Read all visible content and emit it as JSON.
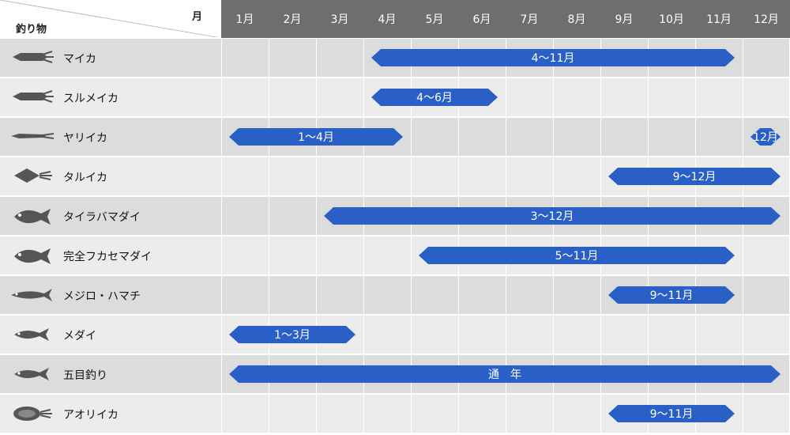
{
  "header": {
    "corner_left": "釣り物",
    "corner_right": "月"
  },
  "colors": {
    "header_bg": "#6e6e6e",
    "row_dark": "#dcdcdc",
    "row_light": "#ececec",
    "bar": "#2a5fc6"
  },
  "chart_data": {
    "type": "gantt",
    "months": [
      "1月",
      "2月",
      "3月",
      "4月",
      "5月",
      "6月",
      "7月",
      "8月",
      "9月",
      "10月",
      "11月",
      "12月"
    ],
    "rows": [
      {
        "label": "マイカ",
        "icon": "squid-icon",
        "bars": [
          {
            "start": 4,
            "end": 11,
            "text": "4～11月"
          }
        ]
      },
      {
        "label": "スルメイカ",
        "icon": "squid-icon",
        "bars": [
          {
            "start": 4,
            "end": 6,
            "text": "4～6月"
          }
        ]
      },
      {
        "label": "ヤリイカ",
        "icon": "spear-squid-icon",
        "bars": [
          {
            "start": 1,
            "end": 4,
            "text": "1～4月"
          },
          {
            "start": 12,
            "end": 12,
            "text": "12月"
          }
        ]
      },
      {
        "label": "タルイカ",
        "icon": "diamond-squid-icon",
        "bars": [
          {
            "start": 9,
            "end": 12,
            "text": "9～12月"
          }
        ]
      },
      {
        "label": "タイラバマダイ",
        "icon": "sea-bream-icon",
        "bars": [
          {
            "start": 3,
            "end": 12,
            "text": "3～12月"
          }
        ]
      },
      {
        "label": "完全フカセマダイ",
        "icon": "sea-bream-icon",
        "bars": [
          {
            "start": 5,
            "end": 11,
            "text": "5～11月"
          }
        ]
      },
      {
        "label": "メジロ・ハマチ",
        "icon": "yellowtail-icon",
        "bars": [
          {
            "start": 9,
            "end": 11,
            "text": "9～11月"
          }
        ]
      },
      {
        "label": "メダイ",
        "icon": "fish-icon",
        "bars": [
          {
            "start": 1,
            "end": 3,
            "text": "1～3月"
          }
        ]
      },
      {
        "label": "五目釣り",
        "icon": "fish-icon",
        "bars": [
          {
            "start": 1,
            "end": 12,
            "text": "通　年"
          }
        ]
      },
      {
        "label": "アオリイカ",
        "icon": "cuttlefish-icon",
        "bars": [
          {
            "start": 9,
            "end": 11,
            "text": "9～11月"
          }
        ]
      }
    ]
  }
}
